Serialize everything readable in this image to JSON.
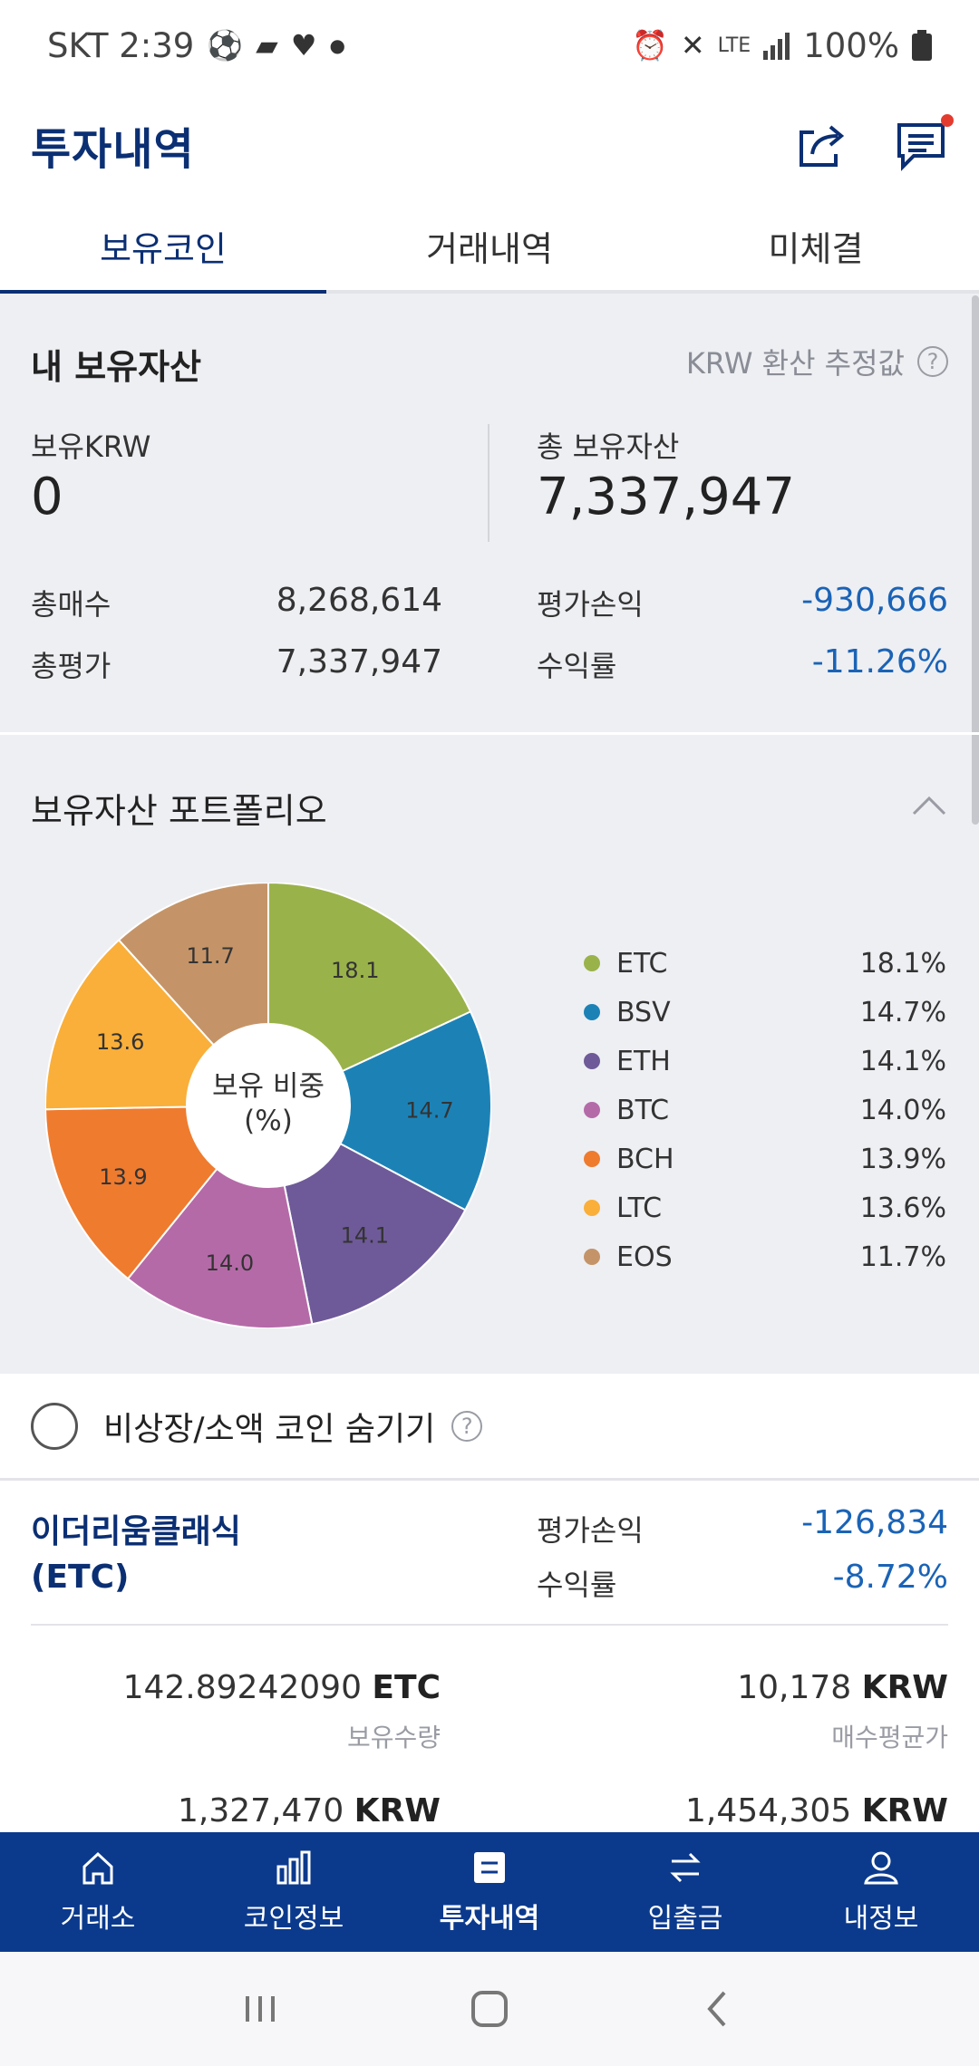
{
  "status_bar": {
    "carrier_time": "SKT 2:39",
    "battery": "100%",
    "network": "LTE"
  },
  "header": {
    "title": "투자내역",
    "share_icon": "share-icon",
    "chat_icon": "chat-icon"
  },
  "tabs": [
    {
      "label": "보유코인",
      "active": true
    },
    {
      "label": "거래내역",
      "active": false
    },
    {
      "label": "미체결",
      "active": false
    }
  ],
  "assets": {
    "title": "내 보유자산",
    "krw_note": "KRW 환산 추정값",
    "help": "?",
    "krw_label": "보유KRW",
    "krw_value": "0",
    "total_label": "총 보유자산",
    "total_value": "7,337,947",
    "buy_label": "총매수",
    "buy_value": "8,268,614",
    "eval_label": "총평가",
    "eval_value": "7,337,947",
    "pnl_label": "평가손익",
    "pnl_value": "-930,666",
    "rate_label": "수익률",
    "rate_value": "-11.26%"
  },
  "portfolio": {
    "title": "보유자산 포트폴리오",
    "center_line1": "보유 비중",
    "center_line2": "(%)"
  },
  "chart_data": {
    "type": "pie",
    "categories": [
      "ETC",
      "BSV",
      "ETH",
      "BTC",
      "BCH",
      "LTC",
      "EOS"
    ],
    "values": [
      18.1,
      14.7,
      14.1,
      14.0,
      13.9,
      13.6,
      11.7
    ],
    "value_labels": [
      "18.1%",
      "14.7%",
      "14.1%",
      "14.0%",
      "13.9%",
      "13.6%",
      "11.7%"
    ],
    "colors": [
      "#9ab24a",
      "#1c82b6",
      "#6e5a98",
      "#b56aa8",
      "#ef7b2e",
      "#f9af3a",
      "#c49468"
    ],
    "legend_position": "right",
    "donut": true
  },
  "hide_coins": {
    "label": "비상장/소액 코인 숨기기",
    "help": "?"
  },
  "coin_card": {
    "name_line1": "이더리움클래식",
    "name_line2": "(ETC)",
    "pnl_label": "평가손익",
    "pnl_value": "-126,834",
    "rate_label": "수익률",
    "rate_value": "-8.72%",
    "qty_value": "142.89242090",
    "qty_unit": "ETC",
    "qty_label": "보유수량",
    "avg_value": "10,178",
    "avg_unit": "KRW",
    "avg_label": "매수평균가",
    "eval_value": "1,327,470",
    "eval_unit": "KRW",
    "buy_value": "1,454,305",
    "buy_unit": "KRW"
  },
  "bottom_nav": [
    {
      "label": "거래소",
      "icon": "home-icon"
    },
    {
      "label": "코인정보",
      "icon": "bar-chart-icon"
    },
    {
      "label": "투자내역",
      "icon": "list-icon",
      "active": true
    },
    {
      "label": "입출금",
      "icon": "transfer-icon"
    },
    {
      "label": "내정보",
      "icon": "user-icon"
    }
  ]
}
